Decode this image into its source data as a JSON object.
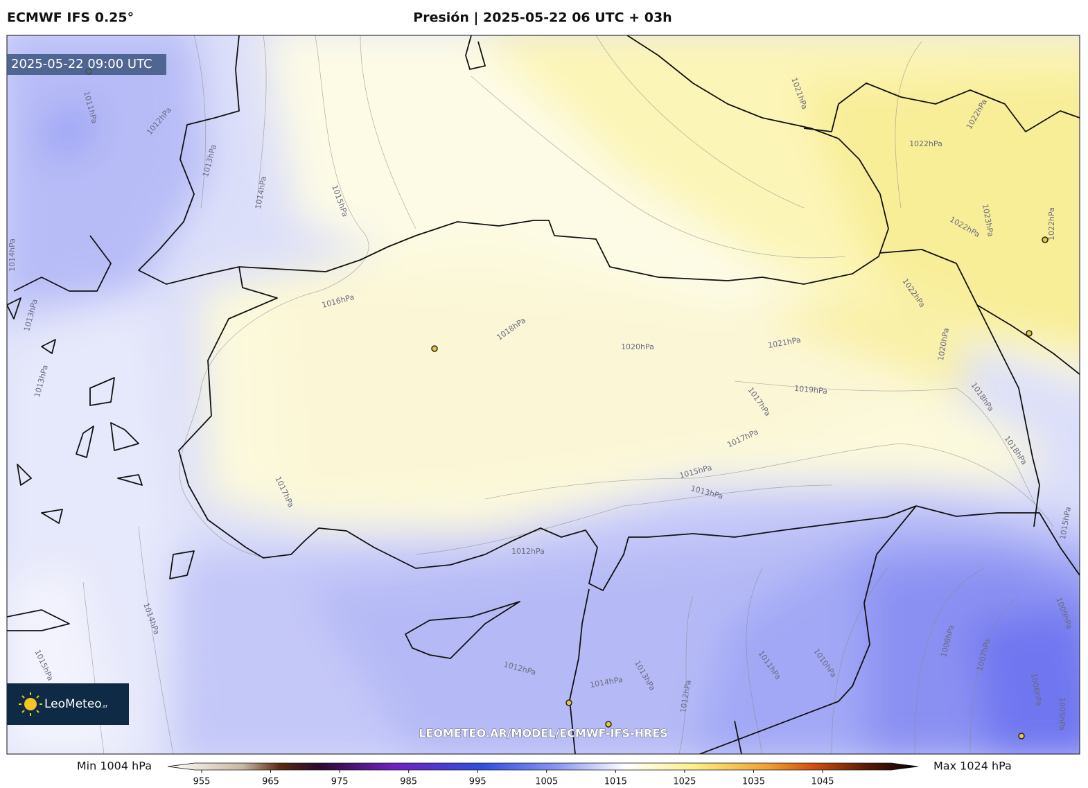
{
  "header": {
    "model": "ECMWF IFS 0.25°",
    "title": "Presión | 2025-05-22 06 UTC + 03h"
  },
  "map": {
    "timestamp": "2025-05-22 09:00 UTC",
    "watermark": "LEOMETEO.AR/MODEL/ECMWF-IFS-HRES",
    "logo": "LeoMeteo",
    "logo_suffix": ".ar",
    "contour_labels": [
      "1011hPa",
      "1012hPa",
      "1013hPa",
      "1014hPa",
      "1015hPa",
      "1016hPa",
      "1018hPa",
      "1020hPa",
      "1021hPa",
      "1019hPa",
      "1017hPa",
      "1017hPa",
      "1015hPa",
      "1013hPa",
      "1017hPa",
      "1012hPa",
      "1012hPa",
      "1014hPa",
      "1013hPa",
      "1012hPa",
      "1011hPa",
      "1010hPa",
      "1008hPa",
      "1007hPa",
      "1006hPa",
      "1005hPa",
      "1009hPa",
      "1015hPa",
      "1018hPa",
      "1018hPa",
      "1020hPa",
      "1022hPa",
      "1022hPa",
      "1023hPa",
      "1022hPa",
      "1022hPa",
      "1022hPa",
      "1021hPa",
      "1013hPa",
      "1013hPa",
      "1014hPa",
      "1014hPa",
      "1015hPa"
    ]
  },
  "colorbar": {
    "min_label": "Min 1004 hPa",
    "max_label": "Max 1024 hPa",
    "ticks": [
      955,
      965,
      975,
      985,
      995,
      1005,
      1015,
      1025,
      1035,
      1045
    ]
  }
}
